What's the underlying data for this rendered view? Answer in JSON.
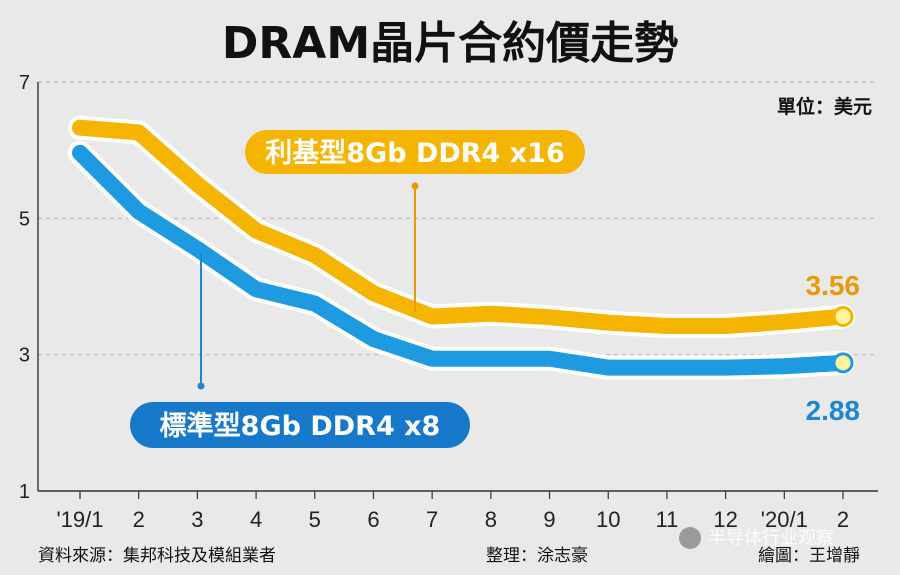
{
  "title": "DRAM晶片合約價走勢",
  "unit_label": "單位：美元",
  "source_label": "資料來源：集邦科技及模組業者",
  "editor_label": "整理：涂志豪",
  "drawer_label": "繪圖：王增靜",
  "watermark": "半导体行业观察",
  "colors": {
    "background": "#e9e9e9",
    "gold_series": "#f5b400",
    "blue_series": "#1e9ae0",
    "blue_pill": "#1778c9",
    "gold_label": "#e89a00",
    "blue_label": "#1e86d0"
  },
  "chart_data": {
    "type": "line",
    "title": "DRAM晶片合約價走勢",
    "ylabel": "單位：美元",
    "xlabel": "",
    "ylim": [
      1,
      7
    ],
    "yticks": [
      1,
      3,
      5,
      7
    ],
    "grid": true,
    "categories": [
      "'19/1",
      "2",
      "3",
      "4",
      "5",
      "6",
      "7",
      "8",
      "9",
      "10",
      "11",
      "12",
      "'20/1",
      "2"
    ],
    "series": [
      {
        "name": "利基型8Gb DDR4 x16",
        "color": "#f5b400",
        "values": [
          6.33,
          6.26,
          5.5,
          4.82,
          4.46,
          3.9,
          3.56,
          3.6,
          3.55,
          3.47,
          3.42,
          3.42,
          3.48,
          3.56
        ],
        "end_label": "3.56"
      },
      {
        "name": "標準型8Gb DDR4 x8",
        "color": "#1e9ae0",
        "values": [
          5.96,
          5.1,
          4.55,
          3.96,
          3.75,
          3.23,
          2.94,
          2.94,
          2.94,
          2.81,
          2.81,
          2.81,
          2.83,
          2.88
        ],
        "end_label": "2.88"
      }
    ]
  }
}
